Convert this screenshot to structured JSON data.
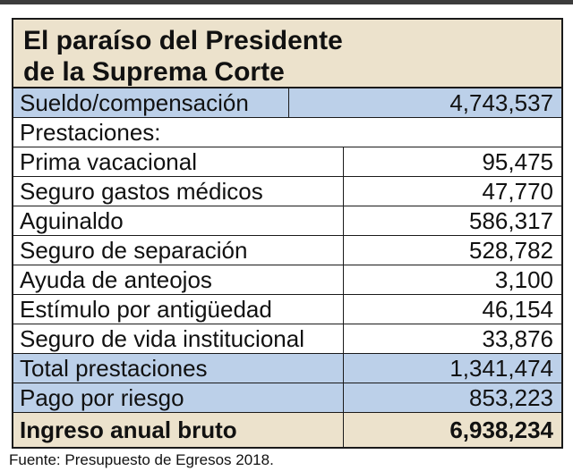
{
  "title": {
    "line1": "El paraíso del Presidente",
    "line2": "de la Suprema Corte"
  },
  "sueldo": {
    "label": "Sueldo/compensación",
    "value": "4,743,537"
  },
  "prestaciones_header": "Prestaciones:",
  "items": [
    {
      "label": "Prima vacacional",
      "value": "95,475"
    },
    {
      "label": "Seguro gastos médicos",
      "value": "47,770"
    },
    {
      "label": "Aguinaldo",
      "value": "586,317"
    },
    {
      "label": "Seguro de separación",
      "value": "528,782"
    },
    {
      "label": "Ayuda de anteojos",
      "value": "3,100"
    },
    {
      "label": "Estímulo por antigüedad",
      "value": "46,154"
    },
    {
      "label": "Seguro de vida institucional",
      "value": "33,876"
    }
  ],
  "total_prestaciones": {
    "label": "Total prestaciones",
    "value": "1,341,474"
  },
  "pago_riesgo": {
    "label": "Pago por riesgo",
    "value": "853,223"
  },
  "ingreso": {
    "label": "Ingreso anual bruto",
    "value": "6,938,234"
  },
  "source": "Fuente: Presupuesto de Egresos 2018.",
  "colors": {
    "header_background": "#ece2cc",
    "highlight_row": "#bcd0e9",
    "text": "#111111",
    "border": "#1a1a1a"
  }
}
